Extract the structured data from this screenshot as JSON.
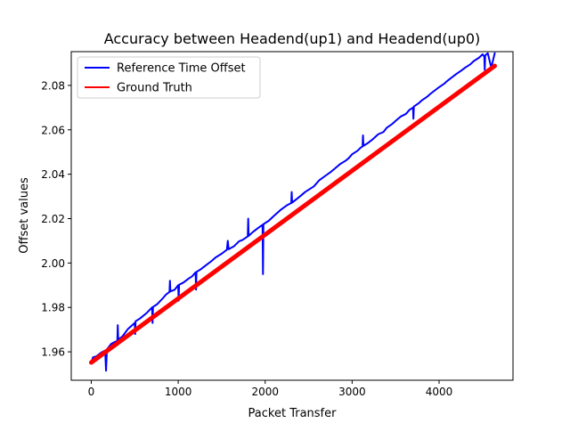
{
  "chart_data": {
    "type": "line",
    "title": "Accuracy between Headend(up1) and Headend(up0)",
    "xlabel": "Packet Transfer",
    "ylabel": "Offset values",
    "xlim": [
      -230,
      4850
    ],
    "ylim": [
      1.9472,
      2.0952
    ],
    "x_ticks": [
      0,
      1000,
      2000,
      3000,
      4000
    ],
    "x_tick_labels": [
      "0",
      "1000",
      "2000",
      "3000",
      "4000"
    ],
    "y_ticks": [
      1.96,
      1.98,
      2.0,
      2.02,
      2.04,
      2.06,
      2.08
    ],
    "y_tick_labels": [
      "1.96",
      "1.98",
      "2.00",
      "2.02",
      "2.04",
      "2.06",
      "2.08"
    ],
    "grid": false,
    "legend_position": "upper-left",
    "series": [
      {
        "name": "Reference Time Offset",
        "color": "#0000ff",
        "x": [
          0,
          20,
          60,
          120,
          160,
          170,
          180,
          230,
          300,
          305,
          310,
          360,
          420,
          500,
          505,
          510,
          560,
          640,
          700,
          705,
          710,
          760,
          820,
          860,
          900,
          905,
          910,
          960,
          1000,
          1005,
          1010,
          1060,
          1120,
          1160,
          1200,
          1205,
          1210,
          1260,
          1320,
          1380,
          1430,
          1500,
          1560,
          1570,
          1580,
          1640,
          1700,
          1740,
          1800,
          1805,
          1810,
          1860,
          1920,
          1970,
          1975,
          1980,
          2040,
          2100,
          2180,
          2250,
          2300,
          2305,
          2310,
          2400,
          2460,
          2500,
          2560,
          2620,
          2700,
          2760,
          2800,
          2860,
          2930,
          2960,
          3000,
          3060,
          3100,
          3120,
          3125,
          3130,
          3180,
          3230,
          3300,
          3360,
          3400,
          3460,
          3500,
          3560,
          3620,
          3660,
          3700,
          3705,
          3710,
          3760,
          3800,
          3860,
          3900,
          3960,
          4000,
          4060,
          4100,
          4160,
          4200,
          4260,
          4300,
          4360,
          4400,
          4460,
          4500,
          4520,
          4525,
          4530,
          4560,
          4600,
          4640
        ],
        "values": [
          1.9552,
          1.9575,
          1.958,
          1.9598,
          1.9606,
          1.9515,
          1.9611,
          1.9636,
          1.965,
          1.972,
          1.9655,
          1.967,
          1.9702,
          1.973,
          1.968,
          1.9738,
          1.975,
          1.9776,
          1.98,
          1.973,
          1.9802,
          1.9815,
          1.984,
          1.9858,
          1.987,
          1.992,
          1.9872,
          1.988,
          1.99,
          1.983,
          1.9902,
          1.9912,
          1.993,
          1.994,
          1.9958,
          1.988,
          1.996,
          1.9972,
          1.999,
          2.0008,
          2.0025,
          2.0042,
          2.006,
          2.01,
          2.0062,
          2.0075,
          2.0098,
          2.0104,
          2.012,
          2.02,
          2.0122,
          2.014,
          2.0158,
          2.0172,
          1.995,
          2.0175,
          2.019,
          2.0212,
          2.024,
          2.026,
          2.027,
          2.032,
          2.0272,
          2.03,
          2.032,
          2.033,
          2.0345,
          2.0372,
          2.0395,
          2.0412,
          2.0425,
          2.0445,
          2.0462,
          2.0472,
          2.049,
          2.0505,
          2.052,
          2.0525,
          2.0575,
          2.0528,
          2.054,
          2.0555,
          2.058,
          2.059,
          2.061,
          2.0626,
          2.064,
          2.066,
          2.0672,
          2.069,
          2.07,
          2.065,
          2.0705,
          2.0718,
          2.0732,
          2.0748,
          2.0762,
          2.078,
          2.0792,
          2.0808,
          2.0822,
          2.084,
          2.0852,
          2.0868,
          2.088,
          2.0895,
          2.091,
          2.0925,
          2.094,
          2.093,
          2.087,
          2.0935,
          2.0945,
          2.088,
          2.0945
        ]
      },
      {
        "name": "Ground Truth",
        "color": "#ff0000",
        "x": [
          0,
          4640
        ],
        "values": [
          1.9552,
          2.0888
        ]
      }
    ]
  }
}
